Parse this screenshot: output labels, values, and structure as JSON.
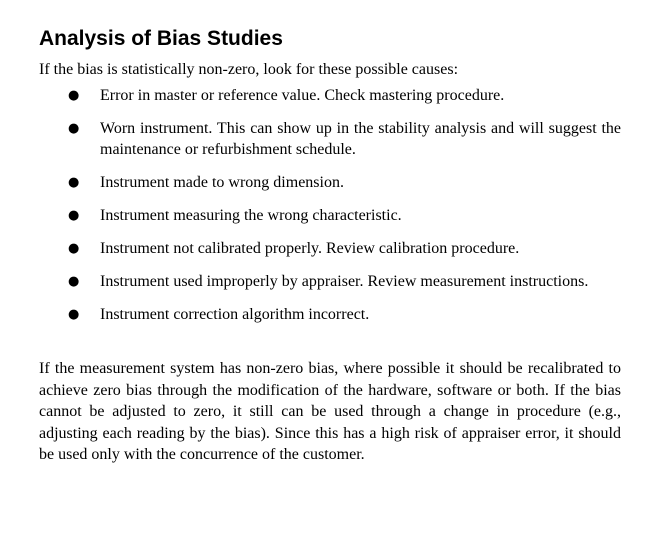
{
  "heading": "Analysis of Bias Studies",
  "intro": "If the bias is statistically non-zero, look for these possible causes:",
  "bullet_glyph": "●",
  "causes": [
    "Error in master or reference value. Check mastering procedure.",
    "Worn instrument. This can show up in the stability analysis and will suggest the maintenance or refurbishment schedule.",
    "Instrument made to wrong dimension.",
    "Instrument measuring the wrong characteristic.",
    "Instrument not calibrated properly. Review calibration procedure.",
    "Instrument used improperly by appraiser. Review measurement instructions.",
    "Instrument correction algorithm incorrect."
  ],
  "closing": "If the measurement system has non-zero bias, where possible it should be recalibrated to achieve zero bias through the modification of the hardware, software or both. If the bias cannot be adjusted to zero, it still can be used through a change in procedure (e.g., adjusting each reading by the bias). Since this has a high risk of appraiser error, it should be used only with the concurrence of the customer."
}
